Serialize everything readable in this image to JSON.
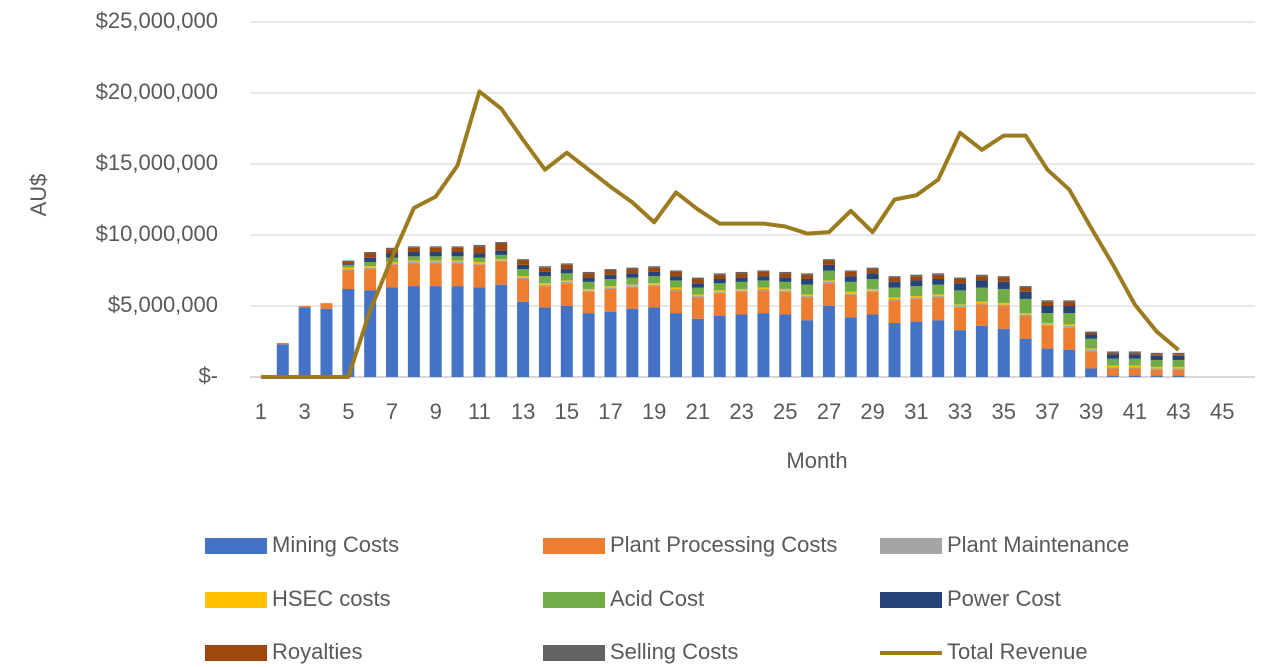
{
  "chart_data": {
    "type": "bar",
    "stacked": true,
    "x_label": "Month",
    "y_label": "AU$",
    "categories": [
      1,
      null,
      3,
      null,
      5,
      null,
      7,
      null,
      9,
      null,
      11,
      null,
      13,
      null,
      15,
      null,
      17,
      null,
      19,
      null,
      21,
      null,
      23,
      null,
      25,
      null,
      27,
      null,
      29,
      null,
      31,
      null,
      33,
      null,
      35,
      null,
      37,
      null,
      39,
      null,
      41,
      null,
      43,
      null,
      45,
      null
    ],
    "ylim": [
      0,
      25000000
    ],
    "yticks": [
      {
        "value": 0,
        "label": "$-"
      },
      {
        "value": 5000000,
        "label": "$5,000,000"
      },
      {
        "value": 10000000,
        "label": "$10,000,000"
      },
      {
        "value": 15000000,
        "label": "$15,000,000"
      },
      {
        "value": 20000000,
        "label": "$20,000,000"
      },
      {
        "value": 25000000,
        "label": "$25,000,000"
      }
    ],
    "grid": true,
    "legend": "bottom",
    "series": [
      {
        "name": "Mining Costs",
        "color": "#4472c4",
        "values": [
          0,
          2300000,
          4900000,
          4800000,
          6200000,
          6100000,
          6300000,
          6400000,
          6400000,
          6400000,
          6300000,
          6500000,
          5300000,
          4900000,
          5000000,
          4500000,
          4600000,
          4800000,
          4900000,
          4500000,
          4100000,
          4300000,
          4400000,
          4500000,
          4400000,
          4000000,
          5000000,
          4200000,
          4400000,
          3800000,
          3900000,
          4000000,
          3300000,
          3600000,
          3400000,
          2700000,
          2000000,
          1900000,
          600000,
          100000,
          100000,
          100000,
          100000,
          null,
          null,
          null
        ]
      },
      {
        "name": "Plant Processing Costs",
        "color": "#ed7d31",
        "values": [
          0,
          100000,
          100000,
          400000,
          1300000,
          1500000,
          1600000,
          1600000,
          1600000,
          1600000,
          1600000,
          1600000,
          1600000,
          1500000,
          1600000,
          1500000,
          1600000,
          1500000,
          1500000,
          1600000,
          1500000,
          1600000,
          1600000,
          1600000,
          1600000,
          1600000,
          1600000,
          1600000,
          1600000,
          1600000,
          1600000,
          1600000,
          1600000,
          1500000,
          1600000,
          1600000,
          1600000,
          1600000,
          1200000,
          500000,
          500000,
          400000,
          400000,
          null,
          null,
          null
        ]
      },
      {
        "name": "Plant Maintenance",
        "color": "#a5a5a5",
        "values": [
          0,
          0,
          0,
          0,
          100000,
          100000,
          100000,
          100000,
          100000,
          100000,
          100000,
          100000,
          100000,
          100000,
          100000,
          100000,
          100000,
          100000,
          100000,
          100000,
          100000,
          100000,
          100000,
          100000,
          100000,
          100000,
          100000,
          100000,
          100000,
          100000,
          100000,
          100000,
          100000,
          100000,
          100000,
          100000,
          100000,
          100000,
          100000,
          100000,
          100000,
          100000,
          100000,
          null,
          null,
          null
        ]
      },
      {
        "name": "HSEC costs",
        "color": "#ffc000",
        "values": [
          0,
          0,
          0,
          0,
          100000,
          100000,
          100000,
          100000,
          100000,
          100000,
          100000,
          100000,
          100000,
          100000,
          100000,
          100000,
          100000,
          100000,
          100000,
          100000,
          100000,
          100000,
          100000,
          100000,
          100000,
          100000,
          100000,
          100000,
          100000,
          100000,
          100000,
          100000,
          100000,
          100000,
          100000,
          100000,
          100000,
          100000,
          100000,
          100000,
          100000,
          100000,
          100000,
          null,
          null,
          null
        ]
      },
      {
        "name": "Acid Cost",
        "color": "#70ad47",
        "values": [
          0,
          0,
          0,
          0,
          200000,
          300000,
          300000,
          300000,
          300000,
          300000,
          300000,
          300000,
          500000,
          500000,
          500000,
          500000,
          500000,
          500000,
          500000,
          500000,
          500000,
          500000,
          500000,
          500000,
          500000,
          700000,
          700000,
          700000,
          700000,
          700000,
          700000,
          700000,
          1000000,
          1000000,
          1000000,
          1000000,
          700000,
          800000,
          700000,
          500000,
          500000,
          500000,
          500000,
          null,
          null,
          null
        ]
      },
      {
        "name": "Power Cost",
        "color": "#264478",
        "values": [
          0,
          0,
          0,
          0,
          100000,
          300000,
          300000,
          300000,
          300000,
          300000,
          300000,
          300000,
          300000,
          300000,
          300000,
          300000,
          300000,
          300000,
          300000,
          300000,
          300000,
          300000,
          300000,
          300000,
          300000,
          400000,
          400000,
          400000,
          400000,
          400000,
          400000,
          400000,
          500000,
          500000,
          500000,
          500000,
          500000,
          500000,
          300000,
          300000,
          300000,
          300000,
          300000,
          null,
          null,
          null
        ]
      },
      {
        "name": "Royalties",
        "color": "#9e480e",
        "values": [
          0,
          0,
          0,
          0,
          100000,
          300000,
          300000,
          300000,
          300000,
          300000,
          500000,
          500000,
          300000,
          300000,
          300000,
          300000,
          300000,
          300000,
          300000,
          300000,
          300000,
          300000,
          300000,
          300000,
          300000,
          300000,
          300000,
          300000,
          300000,
          300000,
          300000,
          300000,
          300000,
          300000,
          300000,
          300000,
          300000,
          300000,
          100000,
          100000,
          100000,
          100000,
          100000,
          null,
          null,
          null
        ]
      },
      {
        "name": "Selling Costs",
        "color": "#636363",
        "values": [
          0,
          0,
          0,
          0,
          100000,
          100000,
          100000,
          100000,
          100000,
          100000,
          100000,
          100000,
          100000,
          100000,
          100000,
          100000,
          100000,
          100000,
          100000,
          100000,
          100000,
          100000,
          100000,
          100000,
          100000,
          100000,
          100000,
          100000,
          100000,
          100000,
          100000,
          100000,
          100000,
          100000,
          100000,
          100000,
          100000,
          100000,
          100000,
          100000,
          100000,
          100000,
          100000,
          null,
          null,
          null
        ]
      },
      {
        "name": "Total Revenue",
        "color": "#9c7a1e",
        "type": "line",
        "values": [
          0,
          0,
          0,
          0,
          0,
          4700000,
          8400000,
          11900000,
          12700000,
          14900000,
          20100000,
          18900000,
          16700000,
          14600000,
          15800000,
          14600000,
          13400000,
          12300000,
          10900000,
          13000000,
          11800000,
          10800000,
          10800000,
          10800000,
          10600000,
          10100000,
          10200000,
          11700000,
          10200000,
          12500000,
          12800000,
          13900000,
          17200000,
          16000000,
          17000000,
          17000000,
          14600000,
          13200000,
          10500000,
          7900000,
          5100000,
          3200000,
          1900000,
          null,
          null,
          null
        ]
      }
    ]
  }
}
